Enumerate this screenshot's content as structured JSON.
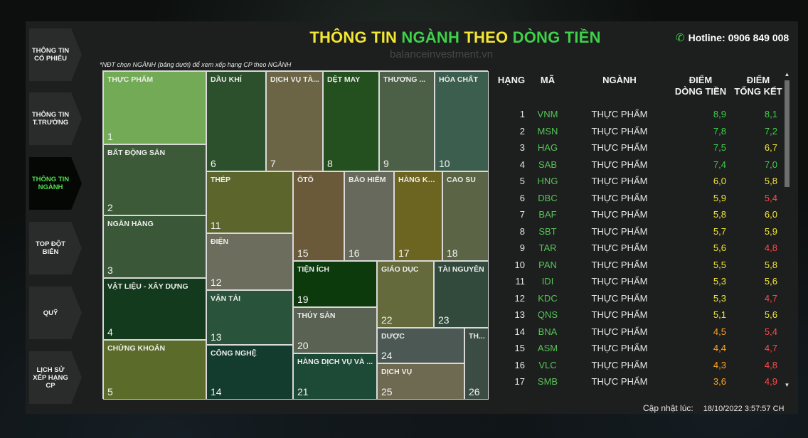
{
  "sidebar": [
    {
      "label": "THÔNG TIN CỔ PHIẾU",
      "active": false
    },
    {
      "label": "THÔNG TIN T.TRƯỜNG",
      "active": false
    },
    {
      "label": "THÔNG TIN NGÀNH",
      "active": true
    },
    {
      "label": "TOP ĐỘT BIẾN",
      "active": false
    },
    {
      "label": "QUỸ",
      "active": false
    },
    {
      "label": "LỊCH SỬ XẾP HẠNG CP",
      "active": false
    }
  ],
  "header": {
    "title_part1": "THÔNG TIN ",
    "title_part2": "NGÀNH",
    "title_part3": " THEO ",
    "title_part4": "DÒNG TIỀN",
    "watermark": "balanceinvestment.vn",
    "hotline": "Hotline: 0906 849 008",
    "note": "*NĐT chọn NGÀNH (bảng dưới) để xem xếp hạng CP theo NGÀNH"
  },
  "colors": {
    "title_yellow": "#f3e733",
    "title_green": "#3ed14a",
    "active_green": "#4ee04e"
  },
  "treemap": [
    {
      "label": "THỰC PHẨM",
      "num": "1",
      "color": "#72aa55"
    },
    {
      "label": "BẤT ĐỘNG SẢN",
      "num": "2",
      "color": "#3c5a38"
    },
    {
      "label": "NGÂN HÀNG",
      "num": "3",
      "color": "#3a5738"
    },
    {
      "label": "VẬT LIỆU - XÂY DỰNG",
      "num": "4",
      "color": "#133a1c"
    },
    {
      "label": "CHỨNG KHOÁN",
      "num": "5",
      "color": "#5b6b2a"
    },
    {
      "label": "DẦU KHÍ",
      "num": "6",
      "color": "#2c4f2c"
    },
    {
      "label": "DỊCH VỤ TÀ...",
      "num": "7",
      "color": "#6b6545"
    },
    {
      "label": "DỆT MAY",
      "num": "8",
      "color": "#24501f"
    },
    {
      "label": "THƯƠNG ...",
      "num": "9",
      "color": "#4c5f47"
    },
    {
      "label": "HÓA CHẤT",
      "num": "10",
      "color": "#3c5e4f"
    },
    {
      "label": "THÉP",
      "num": "11",
      "color": "#5c662c"
    },
    {
      "label": "ĐIỆN",
      "num": "12",
      "color": "#6c6d5c"
    },
    {
      "label": "VẬN TẢI",
      "num": "13",
      "color": "#29533a"
    },
    {
      "label": "CÔNG NGHỆ",
      "num": "14",
      "color": "#133c2e"
    },
    {
      "label": "ÔTÔ",
      "num": "15",
      "color": "#6a5a3a"
    },
    {
      "label": "BẢO HIỂM",
      "num": "16",
      "color": "#66695c"
    },
    {
      "label": "HÀNG KH...",
      "num": "17",
      "color": "#6c6421"
    },
    {
      "label": "CAO SU",
      "num": "18",
      "color": "#5b6445"
    },
    {
      "label": "TIỆN ÍCH",
      "num": "19",
      "color": "#0c3a0c"
    },
    {
      "label": "THỦY SẢN",
      "num": "20",
      "color": "#5a6253"
    },
    {
      "label": "HÀNG DỊCH VỤ VÀ ...",
      "num": "21",
      "color": "#1d4a37"
    },
    {
      "label": "GIÁO DỤC",
      "num": "22",
      "color": "#646a3b"
    },
    {
      "label": "TÀI NGUYÊN",
      "num": "23",
      "color": "#324a3c"
    },
    {
      "label": "DƯỢC",
      "num": "24",
      "color": "#4b5853"
    },
    {
      "label": "DỊCH VỤ",
      "num": "25",
      "color": "#6e6a52"
    },
    {
      "label": "TH...",
      "num": "26",
      "color": "#3a4c44"
    }
  ],
  "table": {
    "headers": {
      "rank": "HẠNG",
      "code": "MÃ",
      "industry": "NGÀNH",
      "score1_a": "ĐIỂM",
      "score1_b": "DÒNG TIỀN",
      "score2_a": "ĐIỂM",
      "score2_b": "TỔNG KẾT"
    },
    "rows": [
      {
        "rank": "1",
        "code": "VNM",
        "industry": "THỰC PHẨM",
        "s1": "8,9",
        "s1c": "#3ed14a",
        "s2": "8,1",
        "s2c": "#3ed14a"
      },
      {
        "rank": "2",
        "code": "MSN",
        "industry": "THỰC PHẨM",
        "s1": "7,8",
        "s1c": "#3ed14a",
        "s2": "7,2",
        "s2c": "#3ed14a"
      },
      {
        "rank": "3",
        "code": "HAG",
        "industry": "THỰC PHẨM",
        "s1": "7,5",
        "s1c": "#3ed14a",
        "s2": "6,7",
        "s2c": "#f3e733"
      },
      {
        "rank": "4",
        "code": "SAB",
        "industry": "THỰC PHẨM",
        "s1": "7,4",
        "s1c": "#3ed14a",
        "s2": "7,0",
        "s2c": "#3ed14a"
      },
      {
        "rank": "5",
        "code": "HNG",
        "industry": "THỰC PHẨM",
        "s1": "6,0",
        "s1c": "#f3e733",
        "s2": "5,8",
        "s2c": "#f3e733"
      },
      {
        "rank": "6",
        "code": "DBC",
        "industry": "THỰC PHẨM",
        "s1": "5,9",
        "s1c": "#f3e733",
        "s2": "5,4",
        "s2c": "#ff4a4a"
      },
      {
        "rank": "7",
        "code": "BAF",
        "industry": "THỰC PHẨM",
        "s1": "5,8",
        "s1c": "#f3e733",
        "s2": "6,0",
        "s2c": "#f3e733"
      },
      {
        "rank": "8",
        "code": "SBT",
        "industry": "THỰC PHẨM",
        "s1": "5,7",
        "s1c": "#f3e733",
        "s2": "5,9",
        "s2c": "#f3e733"
      },
      {
        "rank": "9",
        "code": "TAR",
        "industry": "THỰC PHẨM",
        "s1": "5,6",
        "s1c": "#f3e733",
        "s2": "4,8",
        "s2c": "#ff4a4a"
      },
      {
        "rank": "10",
        "code": "PAN",
        "industry": "THỰC PHẨM",
        "s1": "5,5",
        "s1c": "#f3e733",
        "s2": "5,8",
        "s2c": "#f3e733"
      },
      {
        "rank": "11",
        "code": "IDI",
        "industry": "THỰC PHẨM",
        "s1": "5,3",
        "s1c": "#f3e733",
        "s2": "5,6",
        "s2c": "#f3e733"
      },
      {
        "rank": "12",
        "code": "KDC",
        "industry": "THỰC PHẨM",
        "s1": "5,3",
        "s1c": "#f3e733",
        "s2": "4,7",
        "s2c": "#ff4a4a"
      },
      {
        "rank": "13",
        "code": "QNS",
        "industry": "THỰC PHẨM",
        "s1": "5,1",
        "s1c": "#f3e733",
        "s2": "5,6",
        "s2c": "#f3e733"
      },
      {
        "rank": "14",
        "code": "BNA",
        "industry": "THỰC PHẨM",
        "s1": "4,5",
        "s1c": "#ffa51f",
        "s2": "5,4",
        "s2c": "#ff4a4a"
      },
      {
        "rank": "15",
        "code": "ASM",
        "industry": "THỰC PHẨM",
        "s1": "4,4",
        "s1c": "#ffa51f",
        "s2": "4,7",
        "s2c": "#ff4a4a"
      },
      {
        "rank": "16",
        "code": "VLC",
        "industry": "THỰC PHẨM",
        "s1": "4,3",
        "s1c": "#ffa51f",
        "s2": "4,8",
        "s2c": "#ff4a4a"
      },
      {
        "rank": "17",
        "code": "SMB",
        "industry": "THỰC PHẨM",
        "s1": "3,6",
        "s1c": "#ffa51f",
        "s2": "4,9",
        "s2c": "#ff4a4a"
      }
    ]
  },
  "footer": {
    "label": "Cập nhật lúc:",
    "timestamp": "18/10/2022 3:57:57 CH"
  }
}
